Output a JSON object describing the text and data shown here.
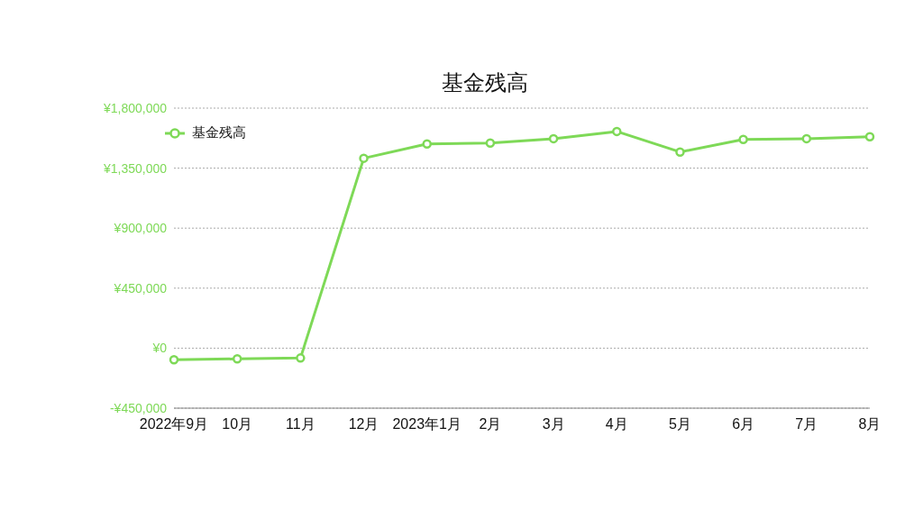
{
  "chart_data": {
    "type": "line",
    "title": "基金残高",
    "categories": [
      "2022年9月",
      "10月",
      "11月",
      "12月",
      "2023年1月",
      "2月",
      "3月",
      "4月",
      "5月",
      "6月",
      "7月",
      "8月"
    ],
    "series": [
      {
        "name": "基金残高",
        "color": "#7ed957",
        "values": [
          -87000,
          -80000,
          -74000,
          1424000,
          1531000,
          1538000,
          1571000,
          1625000,
          1471000,
          1565000,
          1571000,
          1585000
        ]
      }
    ],
    "ylim": [
      -450000,
      1800000
    ],
    "yticks": [
      {
        "value": -450000,
        "label": "-¥450,000"
      },
      {
        "value": 0,
        "label": "¥0"
      },
      {
        "value": 450000,
        "label": "¥450,000"
      },
      {
        "value": 900000,
        "label": "¥900,000"
      },
      {
        "value": 1350000,
        "label": "¥1,350,000"
      },
      {
        "value": 1800000,
        "label": "¥1,800,000"
      }
    ],
    "grid": "y",
    "legend": "top left",
    "marker": "circle",
    "line_style": "solid"
  }
}
